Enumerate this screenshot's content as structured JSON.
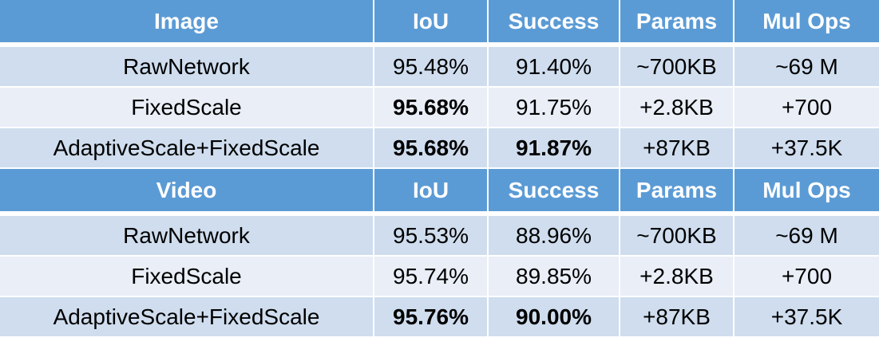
{
  "sections": [
    {
      "header": [
        "Image",
        "IoU",
        "Success",
        "Params",
        "Mul Ops"
      ],
      "rows": [
        {
          "name": "RawNetwork",
          "iou": "95.48%",
          "success": "91.40%",
          "params": "~700KB",
          "mulops": "~69 M",
          "bold_iou": false,
          "bold_success": false
        },
        {
          "name": "FixedScale",
          "iou": "95.68%",
          "success": "91.75%",
          "params": "+2.8KB",
          "mulops": "+700",
          "bold_iou": true,
          "bold_success": false
        },
        {
          "name": "AdaptiveScale+FixedScale",
          "iou": "95.68%",
          "success": "91.87%",
          "params": "+87KB",
          "mulops": "+37.5K",
          "bold_iou": true,
          "bold_success": true
        }
      ]
    },
    {
      "header": [
        "Video",
        "IoU",
        "Success",
        "Params",
        "Mul Ops"
      ],
      "rows": [
        {
          "name": "RawNetwork",
          "iou": "95.53%",
          "success": "88.96%",
          "params": "~700KB",
          "mulops": "~69 M",
          "bold_iou": false,
          "bold_success": false
        },
        {
          "name": "FixedScale",
          "iou": "95.74%",
          "success": "89.85%",
          "params": "+2.8KB",
          "mulops": "+700",
          "bold_iou": false,
          "bold_success": false
        },
        {
          "name": "AdaptiveScale+FixedScale",
          "iou": "95.76%",
          "success": "90.00%",
          "params": "+87KB",
          "mulops": "+37.5K",
          "bold_iou": true,
          "bold_success": true
        }
      ]
    }
  ],
  "colors": {
    "header_bg": "#5b9bd5",
    "row_odd_bg": "#cfddee",
    "row_even_bg": "#e9eef7"
  }
}
